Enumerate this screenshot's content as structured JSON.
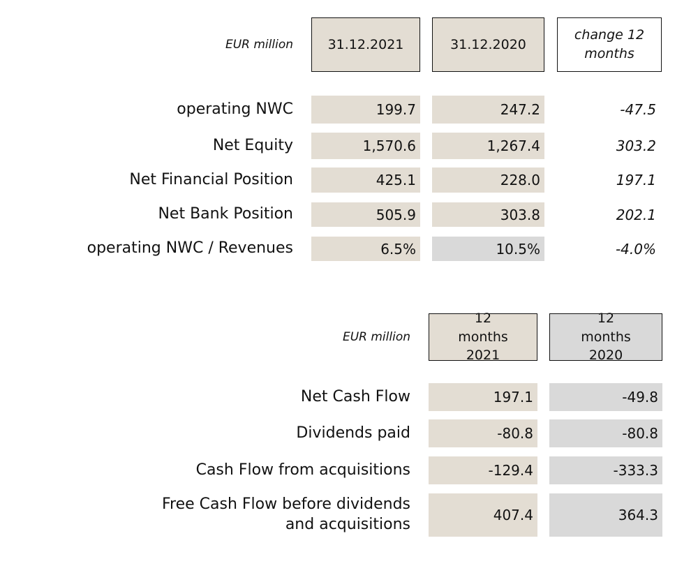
{
  "balance": {
    "unit": "EUR million",
    "headers": [
      "31.12.2021",
      "31.12.2020",
      "change 12 months"
    ],
    "rows": [
      {
        "label": "operating NWC",
        "v2021": "199.7",
        "v2020": "247.2",
        "change": "-47.5"
      },
      {
        "label": "Net Equity",
        "v2021": "1,570.6",
        "v2020": "1,267.4",
        "change": "303.2"
      },
      {
        "label": "Net Financial Position",
        "v2021": "425.1",
        "v2020": "228.0",
        "change": "197.1"
      },
      {
        "label": "Net Bank Position",
        "v2021": "505.9",
        "v2020": "303.8",
        "change": "202.1"
      },
      {
        "label": "operating NWC / Revenues",
        "v2021": "6.5%",
        "v2020": "10.5%",
        "change": "-4.0%"
      }
    ]
  },
  "cashflow": {
    "unit": "EUR million",
    "headers": [
      "12 months 2021",
      "12 months 2020"
    ],
    "rows": [
      {
        "label": "Net Cash Flow",
        "v2021": "197.1",
        "v2020": "-49.8"
      },
      {
        "label": "Dividends paid",
        "v2021": "-80.8",
        "v2020": "-80.8"
      },
      {
        "label": "Cash Flow from acquisitions",
        "v2021": "-129.4",
        "v2020": "-333.3"
      },
      {
        "label": "Free Cash Flow before dividends and acquisitions",
        "v2021": "407.4",
        "v2020": "364.3"
      }
    ]
  },
  "colors": {
    "beige": "#e3ddd3",
    "grey": "#d9d9d9"
  }
}
